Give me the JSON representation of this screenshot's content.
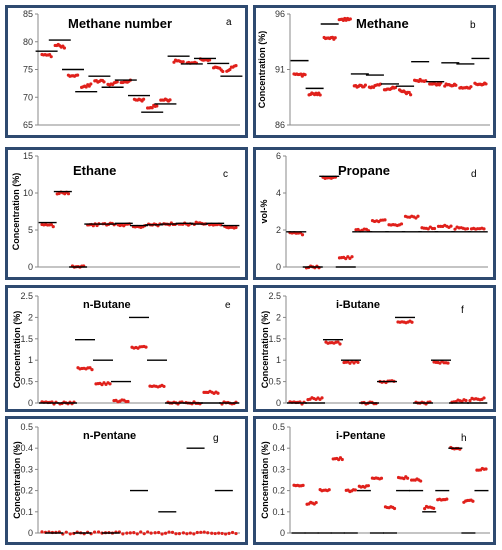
{
  "accent": "#e0201b",
  "frame_color": "#2e4a70",
  "chart_data": [
    {
      "type": "scatter",
      "title": "Methane number",
      "letter": "a",
      "ylabel": "",
      "ylim": [
        65,
        85
      ],
      "yticks": [
        "65",
        "70",
        "75",
        "80",
        "85"
      ],
      "series": [
        {
          "name": "",
          "segments": [
            [
              77.5,
              77.5
            ],
            [
              79.5,
              79.0
            ],
            [
              73.8,
              73.8
            ],
            [
              71.8,
              72.2
            ],
            [
              72.9,
              72.9
            ],
            [
              72.3,
              72.6
            ],
            [
              72.7,
              73.0
            ],
            [
              69.5,
              69.5
            ],
            [
              68.0,
              68.5
            ],
            [
              69.5,
              69.5
            ],
            [
              76.5,
              76.5
            ],
            [
              76.3,
              76.3
            ],
            [
              76.8,
              76.8
            ],
            [
              75.5,
              74.8
            ],
            [
              74.8,
              75.7
            ]
          ]
        },
        {
          "name": "",
          "levels": [
            78.3,
            80.3,
            75.0,
            71.0,
            73.8,
            71.8,
            73.1,
            70.3,
            67.3,
            68.8,
            77.4,
            76.0,
            77.0,
            76.1,
            73.8
          ]
        }
      ]
    },
    {
      "type": "scatter",
      "title": "Methane",
      "letter": "b",
      "ylabel": "Concentration (%)",
      "ylim": [
        86,
        96
      ],
      "yticks": [
        "86",
        "91",
        "96"
      ],
      "series": [
        {
          "name": "",
          "segments": [
            [
              90.5,
              90.5
            ],
            [
              88.8,
              88.8
            ],
            [
              93.8,
              93.8
            ],
            [
              95.5,
              95.5
            ],
            [
              89.5,
              89.5
            ],
            [
              89.4,
              89.6
            ],
            [
              89.2,
              89.4
            ],
            [
              89.1,
              88.8
            ],
            [
              90.0,
              90.0
            ],
            [
              89.7,
              89.7
            ],
            [
              89.6,
              89.6
            ],
            [
              89.4,
              89.4
            ],
            [
              89.7,
              89.7
            ]
          ]
        },
        {
          "name": "",
          "levels": [
            91.8,
            89.3,
            95.1,
            96.6,
            90.6,
            90.5,
            89.7,
            89.5,
            91.7,
            89.9,
            91.6,
            91.5,
            92.0
          ]
        }
      ]
    },
    {
      "type": "scatter",
      "title": "Ethane",
      "letter": "c",
      "ylabel": "Concentration (%)",
      "ylim": [
        0,
        15
      ],
      "yticks": [
        "0",
        "5",
        "10",
        "15"
      ],
      "series": [
        {
          "name": "",
          "segments": [
            [
              5.6,
              5.6
            ],
            [
              10.0,
              10.0
            ],
            [
              0.0,
              0.0
            ],
            [
              5.7,
              5.7
            ],
            [
              5.8,
              5.8
            ],
            [
              5.7,
              5.7
            ],
            [
              5.5,
              5.5
            ],
            [
              5.7,
              5.7
            ],
            [
              5.8,
              5.8
            ],
            [
              5.8,
              5.8
            ],
            [
              5.9,
              5.9
            ],
            [
              5.8,
              5.8
            ],
            [
              5.4,
              5.4
            ]
          ]
        },
        {
          "name": "",
          "levels": [
            6.0,
            10.2,
            0.0,
            5.8,
            5.8,
            5.9,
            5.6,
            5.7,
            5.8,
            5.9,
            5.8,
            5.9,
            5.6
          ]
        }
      ]
    },
    {
      "type": "scatter",
      "title": "Propane",
      "letter": "d",
      "ylabel": "vol-%",
      "ylim": [
        0,
        6
      ],
      "yticks": [
        "0",
        "2",
        "4",
        "6"
      ],
      "series": [
        {
          "name": "",
          "segments": [
            [
              1.8,
              1.8
            ],
            [
              0.0,
              0.0
            ],
            [
              4.8,
              4.8
            ],
            [
              0.5,
              0.5
            ],
            [
              2.0,
              2.0
            ],
            [
              2.5,
              2.5
            ],
            [
              2.3,
              2.3
            ],
            [
              2.7,
              2.7
            ],
            [
              2.1,
              2.1
            ],
            [
              2.2,
              2.2
            ],
            [
              2.1,
              2.1
            ],
            [
              2.1,
              2.1
            ]
          ]
        },
        {
          "name": "",
          "levels": [
            1.9,
            0.0,
            4.9,
            0.0,
            1.9,
            1.9,
            1.9,
            1.9,
            1.9,
            1.9,
            1.9,
            1.9
          ]
        }
      ]
    },
    {
      "type": "scatter",
      "title": "n-Butane",
      "letter": "e",
      "ylabel": "Concentration (%)",
      "ylim": [
        0,
        2.5
      ],
      "yticks": [
        "0",
        "0.5",
        "1",
        "1.5",
        "2",
        "2.5"
      ],
      "series": [
        {
          "name": "",
          "segments": [
            [
              0.0,
              0.0
            ],
            [
              0.0,
              0.0
            ],
            [
              0.8,
              0.8
            ],
            [
              0.45,
              0.45
            ],
            [
              0.05,
              0.05
            ],
            [
              1.3,
              1.3
            ],
            [
              0.4,
              0.4
            ],
            [
              0.0,
              0.0
            ],
            [
              0.0,
              0.0
            ],
            [
              0.25,
              0.25
            ],
            [
              0.0,
              0.0
            ]
          ]
        },
        {
          "name": "",
          "levels": [
            0.0,
            0.0,
            1.48,
            1.0,
            0.5,
            2.0,
            1.0,
            0.0,
            0.0,
            0.0,
            0.0
          ]
        }
      ]
    },
    {
      "type": "scatter",
      "title": "i-Butane",
      "letter": "f",
      "ylabel": "Concentration (%)",
      "ylim": [
        0,
        2.5
      ],
      "yticks": [
        "0",
        "0.5",
        "1",
        "1.5",
        "2",
        "2.5"
      ],
      "series": [
        {
          "name": "",
          "segments": [
            [
              0.0,
              0.0
            ],
            [
              0.1,
              0.1
            ],
            [
              1.4,
              1.4
            ],
            [
              0.95,
              0.95
            ],
            [
              0.0,
              0.0
            ],
            [
              0.5,
              0.5
            ],
            [
              1.9,
              1.9
            ],
            [
              0.0,
              0.0
            ],
            [
              0.95,
              0.95
            ],
            [
              0.02,
              0.08
            ],
            [
              0.08,
              0.1
            ]
          ]
        },
        {
          "name": "",
          "levels": [
            0.0,
            0.0,
            1.48,
            1.0,
            0.0,
            0.5,
            2.0,
            0.0,
            1.0,
            0.0,
            0.0
          ]
        }
      ]
    },
    {
      "type": "scatter",
      "title": "n-Pentane",
      "letter": "g",
      "ylabel": "Concentration (%)",
      "ylim": [
        0,
        0.5
      ],
      "yticks": [
        "0",
        "0.1",
        "0.2",
        "0.3",
        "0.4",
        "0.5"
      ],
      "series": [
        {
          "name": "",
          "segments": [
            [
              0.0,
              0.0
            ],
            [
              0.0,
              0.0
            ],
            [
              0.0,
              0.0
            ],
            [
              0.0,
              0.0
            ],
            [
              0.0,
              0.0
            ],
            [
              0.0,
              0.0
            ],
            [
              0.0,
              0.0
            ]
          ]
        },
        {
          "name": "",
          "levels": [
            0.0,
            0.0,
            0.0,
            0.2,
            0.1,
            0.4,
            0.2
          ]
        }
      ]
    },
    {
      "type": "scatter",
      "title": "i-Pentane",
      "letter": "h",
      "ylabel": "Concentration (%)",
      "ylim": [
        0,
        0.5
      ],
      "yticks": [
        "0",
        "0.1",
        "0.2",
        "0.3",
        "0.4",
        "0.5"
      ],
      "series": [
        {
          "name": "",
          "segments": [
            [
              0.22,
              0.22
            ],
            [
              0.14,
              0.14
            ],
            [
              0.2,
              0.2
            ],
            [
              0.35,
              0.35
            ],
            [
              0.2,
              0.2
            ],
            [
              0.22,
              0.22
            ],
            [
              0.26,
              0.26
            ],
            [
              0.12,
              0.12
            ],
            [
              0.26,
              0.26
            ],
            [
              0.25,
              0.25
            ],
            [
              0.12,
              0.12
            ],
            [
              0.16,
              0.16
            ],
            [
              0.4,
              0.4
            ],
            [
              0.15,
              0.15
            ],
            [
              0.3,
              0.3
            ]
          ]
        },
        {
          "name": "",
          "levels": [
            0.0,
            0.0,
            0.0,
            0.0,
            0.0,
            0.2,
            0.0,
            0.0,
            0.2,
            0.2,
            0.1,
            0.2,
            0.4,
            0.0,
            0.2
          ]
        }
      ]
    }
  ]
}
